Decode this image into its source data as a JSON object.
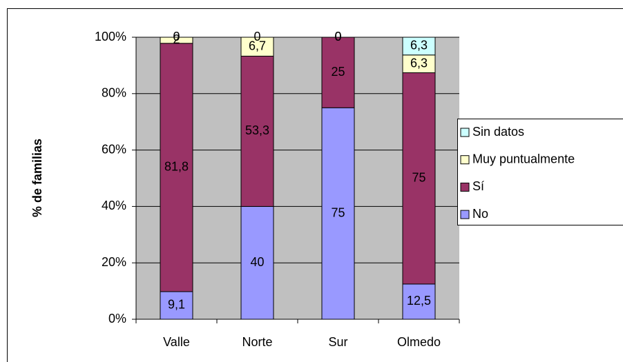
{
  "chart_data": {
    "type": "bar",
    "stacked": "percent",
    "y_label": "% de familias",
    "categories": [
      "Valle",
      "Norte",
      "Sur",
      "Olmedo"
    ],
    "series": [
      {
        "name": "No",
        "color": "#9999ff",
        "values": [
          9.1,
          40,
          75,
          12.5
        ],
        "value_labels": [
          "9,1",
          "40",
          "75",
          "12,5"
        ]
      },
      {
        "name": "Sí",
        "color": "#993366",
        "values": [
          81.8,
          53.3,
          25,
          75
        ],
        "value_labels": [
          "81,8",
          "53,3",
          "25",
          "75"
        ]
      },
      {
        "name": "Muy puntualmente",
        "color": "#ffffcc",
        "values": [
          2,
          6.7,
          0,
          6.3
        ],
        "value_labels": [
          "2",
          "6,7",
          "0",
          "6,3"
        ]
      },
      {
        "name": "Sin datos",
        "color": "#ccffff",
        "values": [
          0,
          0,
          0,
          6.3
        ],
        "value_labels": [
          "0",
          "0",
          "0",
          "6,3"
        ]
      }
    ],
    "ylim": [
      0,
      100
    ],
    "yticks": [
      {
        "value": 0,
        "label": "0%"
      },
      {
        "value": 20,
        "label": "20%"
      },
      {
        "value": 40,
        "label": "40%"
      },
      {
        "value": 60,
        "label": "60%"
      },
      {
        "value": 80,
        "label": "80%"
      },
      {
        "value": 100,
        "label": "100%"
      }
    ],
    "grid": true,
    "legend": "right"
  }
}
